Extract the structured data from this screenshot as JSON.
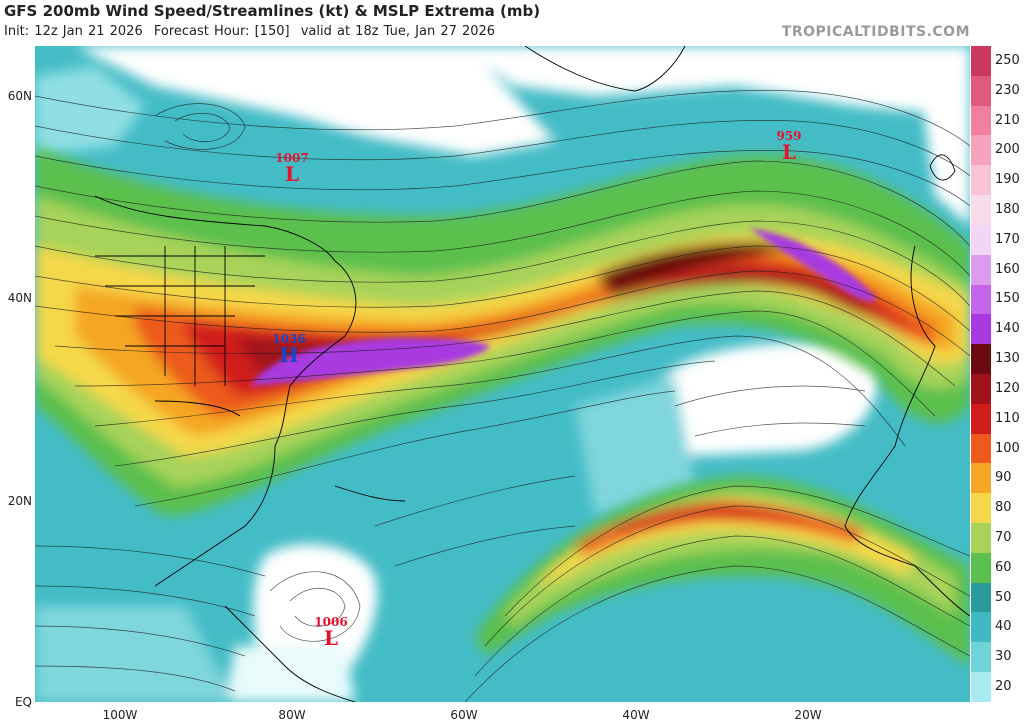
{
  "header": {
    "title": "GFS 200mb Wind Speed/Streamlines (kt) & MSLP Extrema (mb)",
    "init": "Init: 12z Jan 21 2026",
    "forecast_hour": "Forecast Hour: [150]",
    "valid": "valid at 18z Tue, Jan 27 2026",
    "brand": "TROPICALTIDBITS.COM"
  },
  "axes": {
    "lat_labels": [
      "60N",
      "40N",
      "20N",
      "EQ"
    ],
    "lon_labels": [
      "100W",
      "80W",
      "60W",
      "40W",
      "20W"
    ]
  },
  "colorbar": {
    "labels": [
      "250",
      "230",
      "210",
      "200",
      "190",
      "180",
      "170",
      "160",
      "150",
      "140",
      "130",
      "120",
      "110",
      "100",
      "90",
      "80",
      "70",
      "60",
      "50",
      "40",
      "30",
      "20"
    ],
    "colors": [
      "#c8385f",
      "#e05a7e",
      "#f07fa0",
      "#f5a3bd",
      "#f8c3d6",
      "#fadbea",
      "#f2d6f5",
      "#dc9cee",
      "#c566e8",
      "#a83ae0",
      "#6b0a10",
      "#a0131a",
      "#d11c1c",
      "#ec5a1e",
      "#f5a623",
      "#f5d84a",
      "#a7d35a",
      "#5cc04e",
      "#2a9b9b",
      "#3fb9c4",
      "#6ed4d8",
      "#a9eaf0"
    ]
  },
  "extrema": [
    {
      "type": "low",
      "value": "1007",
      "symbol": "L",
      "color": "#e8112d"
    },
    {
      "type": "low",
      "value": "959",
      "symbol": "L",
      "color": "#e8112d"
    },
    {
      "type": "high",
      "value": "1036",
      "symbol": "H",
      "color": "#1446c8"
    },
    {
      "type": "low",
      "value": "1006",
      "symbol": "L",
      "color": "#e8112d"
    }
  ]
}
